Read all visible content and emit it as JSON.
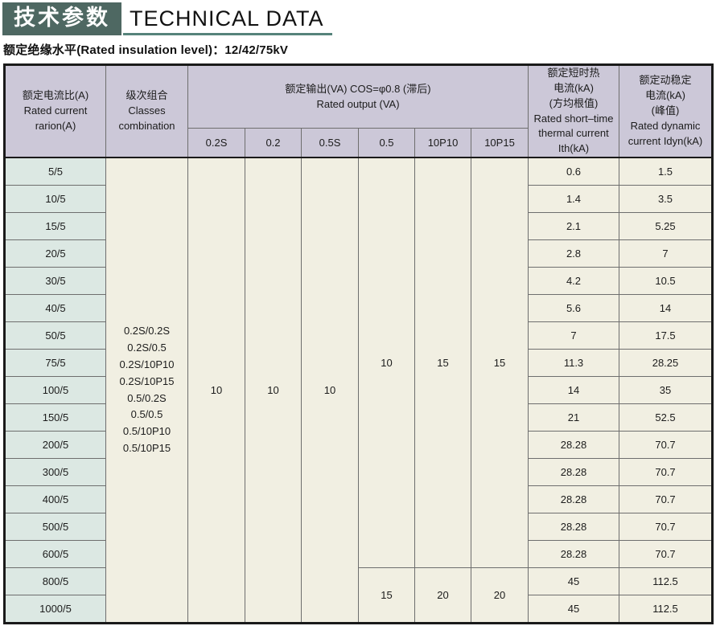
{
  "header": {
    "badge_cn": "技术参数",
    "title_en": "TECHNICAL DATA",
    "subtitle": "额定绝缘水平(Rated insulation level)：12/42/75kV"
  },
  "colors": {
    "badge_bg": "#4e6862",
    "underline": "#56837b",
    "header_bg": "#ccc8d8",
    "ratio_cell_bg": "#dce8e3",
    "body_cell_bg": "#f1efe2"
  },
  "table": {
    "col_ratio": [
      "额定电流比(A)",
      "Rated current",
      "rarion(A)"
    ],
    "col_classes": [
      "级次组合",
      "Classes",
      "combination"
    ],
    "col_output": [
      "额定输出(VA) COS=φ0.8 (滞后)",
      "Rated output (VA)"
    ],
    "col_ith": [
      "额定短时热",
      "电流(kA)",
      "(方均根值)",
      "Rated short–time",
      "thermal current",
      "Ith(kA)"
    ],
    "col_idyn": [
      "额定动稳定",
      "电流(kA)",
      "(峰值)",
      "Rated dynamic",
      "current Idyn(kA)"
    ],
    "sub_cols": [
      "0.2S",
      "0.2",
      "0.5S",
      "0.5",
      "10P10",
      "10P15"
    ],
    "classes_combination": [
      "0.2S/0.2S",
      "0.2S/0.5",
      "0.2S/10P10",
      "0.2S/10P15",
      "0.5/0.2S",
      "0.5/0.5",
      "0.5/10P10",
      "0.5/10P15"
    ],
    "output_allrows": {
      "c02s": "10",
      "c02": "10",
      "c05s": "10"
    },
    "output_upper": {
      "c05": "10",
      "p10": "15",
      "p15": "15"
    },
    "output_lower": {
      "c05": "15",
      "p10": "20",
      "p15": "20"
    },
    "rows": [
      {
        "ratio": "5/5",
        "ith": "0.6",
        "idyn": "1.5"
      },
      {
        "ratio": "10/5",
        "ith": "1.4",
        "idyn": "3.5"
      },
      {
        "ratio": "15/5",
        "ith": "2.1",
        "idyn": "5.25"
      },
      {
        "ratio": "20/5",
        "ith": "2.8",
        "idyn": "7"
      },
      {
        "ratio": "30/5",
        "ith": "4.2",
        "idyn": "10.5"
      },
      {
        "ratio": "40/5",
        "ith": "5.6",
        "idyn": "14"
      },
      {
        "ratio": "50/5",
        "ith": "7",
        "idyn": "17.5"
      },
      {
        "ratio": "75/5",
        "ith": "11.3",
        "idyn": "28.25"
      },
      {
        "ratio": "100/5",
        "ith": "14",
        "idyn": "35"
      },
      {
        "ratio": "150/5",
        "ith": "21",
        "idyn": "52.5"
      },
      {
        "ratio": "200/5",
        "ith": "28.28",
        "idyn": "70.7"
      },
      {
        "ratio": "300/5",
        "ith": "28.28",
        "idyn": "70.7"
      },
      {
        "ratio": "400/5",
        "ith": "28.28",
        "idyn": "70.7"
      },
      {
        "ratio": "500/5",
        "ith": "28.28",
        "idyn": "70.7"
      },
      {
        "ratio": "600/5",
        "ith": "28.28",
        "idyn": "70.7"
      },
      {
        "ratio": "800/5",
        "ith": "45",
        "idyn": "112.5"
      },
      {
        "ratio": "1000/5",
        "ith": "45",
        "idyn": "112.5"
      }
    ]
  }
}
